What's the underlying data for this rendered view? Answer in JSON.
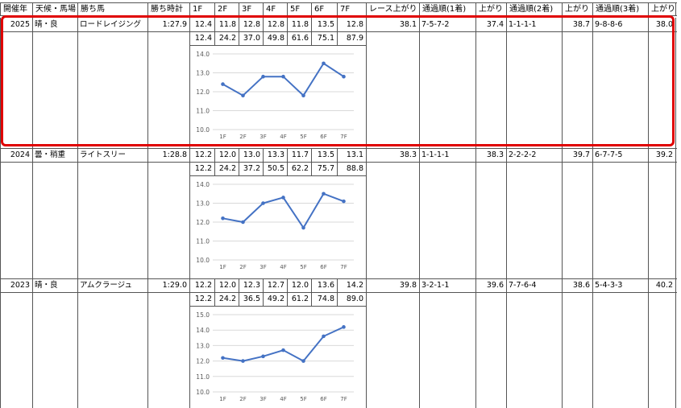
{
  "header": [
    "開催年",
    "天候・馬場",
    "勝ち馬",
    "勝ち時計",
    "1F",
    "2F",
    "3F",
    "4F",
    "5F",
    "6F",
    "7F",
    "レース上がり",
    "通過順(1着)",
    "上がり",
    "通過順(2着)",
    "上がり",
    "通過順(3着)",
    "上がり"
  ],
  "races": [
    {
      "year": "2025",
      "condition": "晴・良",
      "winner": "ロードレイジング",
      "time": "1:27.9",
      "laps": [
        "12.4",
        "11.8",
        "12.8",
        "12.8",
        "11.8",
        "13.5",
        "12.8"
      ],
      "cumulative": [
        "12.4",
        "24.2",
        "37.0",
        "49.8",
        "61.6",
        "75.1",
        "87.9"
      ],
      "race_last": "38.1",
      "pass1": "7-5-7-2",
      "last1": "37.4",
      "pass2": "1-1-1-1",
      "last2": "38.7",
      "pass3": "9-8-8-6",
      "last3": "38.0",
      "chart": {
        "y_ticks": [
          "14.0",
          "13.0",
          "12.0",
          "11.0",
          "10.0"
        ],
        "x_ticks": [
          "1F",
          "2F",
          "3F",
          "4F",
          "5F",
          "6F",
          "7F"
        ]
      }
    },
    {
      "year": "2024",
      "condition": "曇・稍重",
      "winner": "ライトスリー",
      "time": "1:28.8",
      "laps": [
        "12.2",
        "12.0",
        "13.0",
        "13.3",
        "11.7",
        "13.5",
        "13.1"
      ],
      "cumulative": [
        "12.2",
        "24.2",
        "37.2",
        "50.5",
        "62.2",
        "75.7",
        "88.8"
      ],
      "race_last": "38.3",
      "pass1": "1-1-1-1",
      "last1": "38.3",
      "pass2": "2-2-2-2",
      "last2": "39.7",
      "pass3": "6-7-7-5",
      "last3": "39.2",
      "chart": {
        "y_ticks": [
          "14.0",
          "13.0",
          "12.0",
          "11.0",
          "10.0"
        ],
        "x_ticks": [
          "1F",
          "2F",
          "3F",
          "4F",
          "5F",
          "6F",
          "7F"
        ]
      }
    },
    {
      "year": "2023",
      "condition": "晴・良",
      "winner": "アムクラージュ",
      "time": "1:29.0",
      "laps": [
        "12.2",
        "12.0",
        "12.3",
        "12.7",
        "12.0",
        "13.6",
        "14.2"
      ],
      "cumulative": [
        "12.2",
        "24.2",
        "36.5",
        "49.2",
        "61.2",
        "74.8",
        "89.0"
      ],
      "race_last": "39.8",
      "pass1": "3-2-1-1",
      "last1": "39.6",
      "pass2": "7-7-6-4",
      "last2": "38.6",
      "pass3": "5-4-3-3",
      "last3": "40.2",
      "chart": {
        "y_ticks": [
          "15.0",
          "14.0",
          "13.0",
          "12.0",
          "11.0",
          "10.0"
        ],
        "x_ticks": [
          "1F",
          "2F",
          "3F",
          "4F",
          "5F",
          "6F",
          "7F"
        ]
      }
    }
  ],
  "chart_data": [
    {
      "type": "line",
      "categories": [
        "1F",
        "2F",
        "3F",
        "4F",
        "5F",
        "6F",
        "7F"
      ],
      "values": [
        12.4,
        11.8,
        12.8,
        12.8,
        11.8,
        13.5,
        12.8
      ],
      "ylim": [
        10,
        14
      ],
      "grid": true,
      "color": "#4472c4"
    },
    {
      "type": "line",
      "categories": [
        "1F",
        "2F",
        "3F",
        "4F",
        "5F",
        "6F",
        "7F"
      ],
      "values": [
        12.2,
        12.0,
        13.0,
        13.3,
        11.7,
        13.5,
        13.1
      ],
      "ylim": [
        10,
        14
      ],
      "grid": true,
      "color": "#4472c4"
    },
    {
      "type": "line",
      "categories": [
        "1F",
        "2F",
        "3F",
        "4F",
        "5F",
        "6F",
        "7F"
      ],
      "values": [
        12.2,
        12.0,
        12.3,
        12.7,
        12.0,
        13.6,
        14.2
      ],
      "ylim": [
        10,
        15
      ],
      "grid": true,
      "color": "#4472c4"
    }
  ]
}
